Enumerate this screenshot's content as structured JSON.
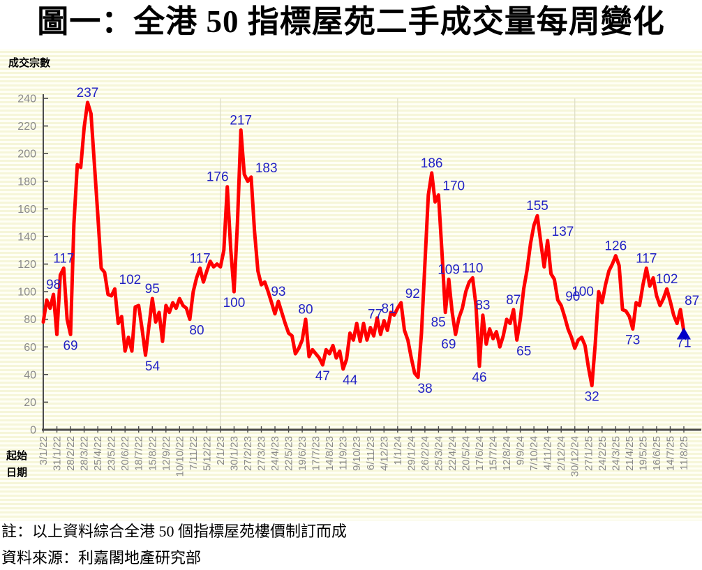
{
  "page": {
    "title": "圖一：全港 50 指標屋苑二手成交量每周變化"
  },
  "chart_data": {
    "type": "line",
    "title": "圖一：全港 50 指標屋苑二手成交量每周變化",
    "ylabel": "成交宗數",
    "xlabel_line1": "起始",
    "xlabel_line2": "日期",
    "ylim": [
      0,
      240
    ],
    "ytick_step": 20,
    "grid": "vertical-year-lines-only",
    "legend_position": "none",
    "x_tick_interval_weeks": 4,
    "x_tick_labels": [
      "3/1/22",
      "31/1/22",
      "28/2/22",
      "28/3/22",
      "25/4/22",
      "23/5/22",
      "20/6/22",
      "18/7/22",
      "15/8/22",
      "12/9/22",
      "10/10/22",
      "7/11/22",
      "5/12/22",
      "2/1/23",
      "30/1/23",
      "27/2/23",
      "27/3/23",
      "24/4/23",
      "22/5/23",
      "19/6/23",
      "17/7/23",
      "14/8/23",
      "11/9/23",
      "9/10/23",
      "6/11/23",
      "4/12/23",
      "1/1/24",
      "29/1/24",
      "26/2/24",
      "25/3/24",
      "22/4/24",
      "20/5/24",
      "17/6/24",
      "15/7/24",
      "12/8/24",
      "9/9/24",
      "7/10/24",
      "4/11/24",
      "2/12/24",
      "30/12/24",
      "27/1/25",
      "24/2/25",
      "24/3/25",
      "21/4/25",
      "19/5/25",
      "16/6/25",
      "14/7/25",
      "11/8/25"
    ],
    "year_gridline_weeks": [
      52,
      104,
      156
    ],
    "series": [
      {
        "name": "成交宗數",
        "color": "#FF0000",
        "values": [
          78,
          94,
          88,
          98,
          69,
          112,
          117,
          80,
          69,
          149,
          192,
          190,
          219,
          237,
          229,
          193,
          156,
          117,
          114,
          98,
          97,
          102,
          77,
          82,
          57,
          67,
          57,
          89,
          90,
          73,
          54,
          75,
          95,
          78,
          85,
          64,
          90,
          85,
          92,
          88,
          95,
          90,
          88,
          80,
          100,
          110,
          117,
          107,
          115,
          122,
          118,
          120,
          118,
          130,
          176,
          131,
          100,
          150,
          217,
          185,
          180,
          183,
          144,
          115,
          105,
          107,
          100,
          92,
          84,
          93,
          85,
          77,
          70,
          68,
          55,
          59,
          65,
          80,
          53,
          58,
          55,
          52,
          47,
          58,
          55,
          61,
          52,
          57,
          44,
          51,
          70,
          65,
          77,
          64,
          77,
          65,
          74,
          68,
          81,
          69,
          79,
          72,
          85,
          83,
          88,
          92,
          72,
          65,
          52,
          41,
          38,
          70,
          120,
          170,
          186,
          165,
          170,
          129,
          85,
          109,
          85,
          69,
          81,
          88,
          100,
          107,
          110,
          90,
          46,
          83,
          62,
          73,
          66,
          71,
          60,
          68,
          80,
          77,
          87,
          65,
          80,
          102,
          116,
          135,
          148,
          155,
          136,
          118,
          137,
          113,
          109,
          94,
          90,
          82,
          73,
          67,
          59,
          65,
          67,
          61,
          45,
          32,
          62,
          100,
          92,
          105,
          115,
          120,
          126,
          119,
          87,
          86,
          82,
          73,
          92,
          90,
          105,
          117,
          104,
          110,
          97,
          90,
          95,
          102,
          93,
          83,
          77,
          87,
          71
        ]
      }
    ],
    "annotations": [
      {
        "label": "98",
        "week": 3,
        "pos": "above"
      },
      {
        "label": "117",
        "week": 6,
        "pos": "above"
      },
      {
        "label": "69",
        "week": 8,
        "pos": "below"
      },
      {
        "label": "237",
        "week": 13,
        "pos": "above"
      },
      {
        "label": "102",
        "week": 21,
        "pos": "above-right"
      },
      {
        "label": "54",
        "week": 30,
        "pos": "below-right"
      },
      {
        "label": "95",
        "week": 32,
        "pos": "above"
      },
      {
        "label": "80",
        "week": 43,
        "pos": "below-right"
      },
      {
        "label": "117",
        "week": 46,
        "pos": "above"
      },
      {
        "label": "176",
        "week": 54,
        "pos": "above-left"
      },
      {
        "label": "100",
        "week": 56,
        "pos": "below"
      },
      {
        "label": "217",
        "week": 58,
        "pos": "above"
      },
      {
        "label": "183",
        "week": 61,
        "pos": "above-right"
      },
      {
        "label": "93",
        "week": 69,
        "pos": "above"
      },
      {
        "label": "80",
        "week": 77,
        "pos": "above"
      },
      {
        "label": "47",
        "week": 82,
        "pos": "below"
      },
      {
        "label": "44",
        "week": 88,
        "pos": "below-right"
      },
      {
        "label": "77",
        "week": 94,
        "pos": "above-right"
      },
      {
        "label": "81",
        "week": 98,
        "pos": "above-right"
      },
      {
        "label": "92",
        "week": 105,
        "pos": "above-right"
      },
      {
        "label": "38",
        "week": 110,
        "pos": "below-right"
      },
      {
        "label": "186",
        "week": 114,
        "pos": "above"
      },
      {
        "label": "170",
        "week": 116,
        "pos": "above-right"
      },
      {
        "label": "85",
        "week": 118,
        "pos": "below-left"
      },
      {
        "label": "109",
        "week": 119,
        "pos": "above"
      },
      {
        "label": "69",
        "week": 121,
        "pos": "below-left"
      },
      {
        "label": "110",
        "week": 126,
        "pos": "above"
      },
      {
        "label": "46",
        "week": 128,
        "pos": "below"
      },
      {
        "label": "83",
        "week": 129,
        "pos": "above"
      },
      {
        "label": "87",
        "week": 138,
        "pos": "above"
      },
      {
        "label": "65",
        "week": 139,
        "pos": "below-right"
      },
      {
        "label": "155",
        "week": 145,
        "pos": "above"
      },
      {
        "label": "137",
        "week": 148,
        "pos": "above-right"
      },
      {
        "label": "90",
        "week": 152,
        "pos": "above-right"
      },
      {
        "label": "100",
        "week": 163,
        "pos": "left"
      },
      {
        "label": "32",
        "week": 161,
        "pos": "below"
      },
      {
        "label": "126",
        "week": 168,
        "pos": "above"
      },
      {
        "label": "73",
        "week": 173,
        "pos": "below"
      },
      {
        "label": "117",
        "week": 177,
        "pos": "above"
      },
      {
        "label": "102",
        "week": 183,
        "pos": "above"
      },
      {
        "label": "87",
        "week": 187,
        "pos": "above-right"
      },
      {
        "label": "71",
        "week": 188,
        "pos": "below"
      }
    ],
    "latest_point_marker": {
      "shape": "triangle-up",
      "color": "#0000C8",
      "week": 188,
      "value": 71
    },
    "colors": {
      "line": "#FF0000",
      "data_label": "#2222C4",
      "axis": "#4B4B4B",
      "tick_text": "#8A8A8A",
      "gridline": "#DCDCC6",
      "band_light": "#FFFFF5",
      "band_dark": "#F6F6D9",
      "marker": "#0000C8"
    }
  },
  "notes": {
    "note": "註：以上資料綜合全港 50 個指標屋苑樓價制訂而成",
    "source": "資料來源：利嘉閣地產研究部"
  }
}
